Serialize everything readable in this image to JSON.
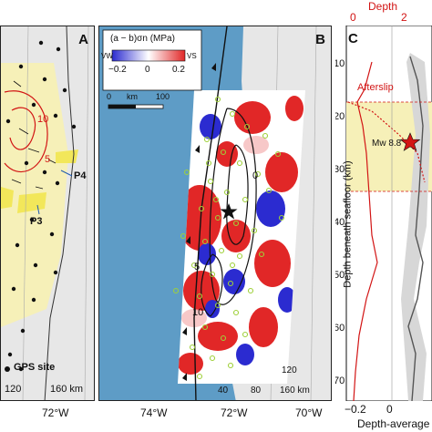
{
  "panels": {
    "a": {
      "label": "A",
      "contours": [
        "10",
        "5"
      ],
      "markers": [
        "P4",
        "P3"
      ],
      "legend_text": "GPS site",
      "scale_ticks": [
        "120",
        "160 km"
      ]
    },
    "b": {
      "label": "B",
      "colorbar_title": "(a − b)σn (MPa)",
      "colorbar_left": "VW",
      "colorbar_right": "VS",
      "colorbar_ticks": [
        "−0.2",
        "0",
        "0.2"
      ],
      "colorbar_min": -0.2,
      "colorbar_max": 0.2,
      "colorbar_colors": [
        "#2b2bd0",
        "#ffffff",
        "#e12727"
      ],
      "scale_ticks": [
        "0",
        "km",
        "100"
      ],
      "contours": [
        "0",
        "5",
        "10"
      ],
      "distance_ticks": [
        "40",
        "80",
        "120",
        "160 km"
      ]
    },
    "c": {
      "label": "C",
      "top_axis_title": "Depth",
      "top_ticks": [
        "0",
        "2"
      ],
      "afterslip_label": "Afterslip",
      "mainshock_label": "Mw 8.8",
      "y_axis_title": "Depth beneath seafloor (km)",
      "y_ticks": [
        "10",
        "20",
        "30",
        "40",
        "50",
        "60",
        "70"
      ],
      "x_ticks": [
        "−0.2",
        "0"
      ],
      "x_axis_title": "Depth-average"
    }
  },
  "bottom_axis": {
    "longitudes": [
      "72°W",
      "74°W",
      "72°W",
      "70°W"
    ]
  },
  "colors": {
    "slip_zone": "#f6f0b8",
    "afterslip_zone": "#f2e75a",
    "afterslip_line": "#d21414",
    "ocean": "#5e9cc6",
    "land": "#e7e7e7",
    "aftershock": "#9fd03a",
    "contour": "#111111"
  }
}
